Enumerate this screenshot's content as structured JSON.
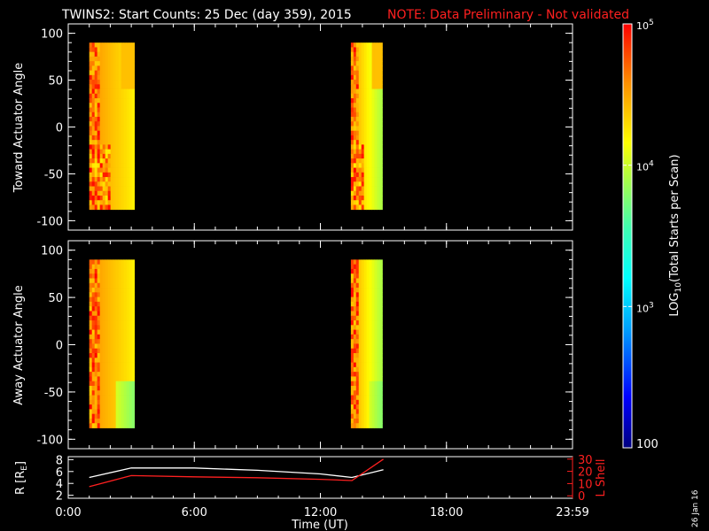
{
  "header": {
    "title": "TWINS2: Start Counts: 25 Dec (day 359), 2015",
    "note": "NOTE: Data Preliminary - Not validated"
  },
  "chart_data": [
    {
      "type": "heatmap",
      "ylabel": "Toward Actuator Angle",
      "ylim": [
        -110,
        110
      ],
      "yticks": [
        100,
        50,
        0,
        -50,
        -100
      ],
      "angle_range": [
        -88,
        90
      ],
      "blocks": [
        {
          "start_h": 1.0,
          "end_h": 3.15
        },
        {
          "start_h": 13.45,
          "end_h": 14.95
        }
      ]
    },
    {
      "type": "heatmap",
      "ylabel": "Away Actuator Angle",
      "ylim": [
        -110,
        110
      ],
      "yticks": [
        100,
        50,
        0,
        -50,
        -100
      ],
      "angle_range": [
        -88,
        90
      ],
      "blocks": [
        {
          "start_h": 1.0,
          "end_h": 3.15
        },
        {
          "start_h": 13.45,
          "end_h": 14.95
        }
      ]
    },
    {
      "type": "line",
      "ylabel_left_main": "R [R",
      "ylabel_left_sub": "E",
      "ylabel_left_close": "]",
      "ylabel_right": "L Shell",
      "yticks_left": [
        8,
        6,
        4,
        2
      ],
      "ylim_left": [
        1.5,
        8.5
      ],
      "yticks_right": [
        30,
        20,
        10,
        0
      ],
      "ylim_right": [
        -2,
        32
      ],
      "xlabel": "Time (UT)",
      "xlim": [
        0,
        24
      ],
      "xtick_labels": [
        "0:00",
        "6:00",
        "12:00",
        "18:00",
        "23:59"
      ],
      "xticks": [
        0,
        6,
        12,
        18,
        24
      ],
      "series": [
        {
          "axis": "left",
          "color": "#ffffff",
          "x": [
            1.0,
            3.0,
            6.0,
            9.0,
            12.0,
            13.5,
            15.0
          ],
          "y": [
            5.0,
            6.6,
            6.6,
            6.2,
            5.6,
            5.0,
            6.3
          ]
        },
        {
          "axis": "right",
          "color": "#ff2020",
          "x": [
            1.0,
            3.0,
            6.0,
            9.0,
            12.0,
            13.5,
            15.0
          ],
          "y": [
            7.5,
            16.5,
            15.5,
            14.8,
            13.5,
            12.5,
            30.0
          ]
        }
      ]
    }
  ],
  "colorbar": {
    "label_main": "LOG",
    "label_sub": "10",
    "label_rest": "(Total Starts per Scan)",
    "tick_labels": [
      "10",
      "10",
      "10"
    ],
    "tick_exps": [
      "5",
      "4",
      "3"
    ],
    "bottom_label": "100",
    "range": [
      100,
      100000
    ]
  },
  "footer": {
    "date_stamp": "26 Jan 16"
  }
}
